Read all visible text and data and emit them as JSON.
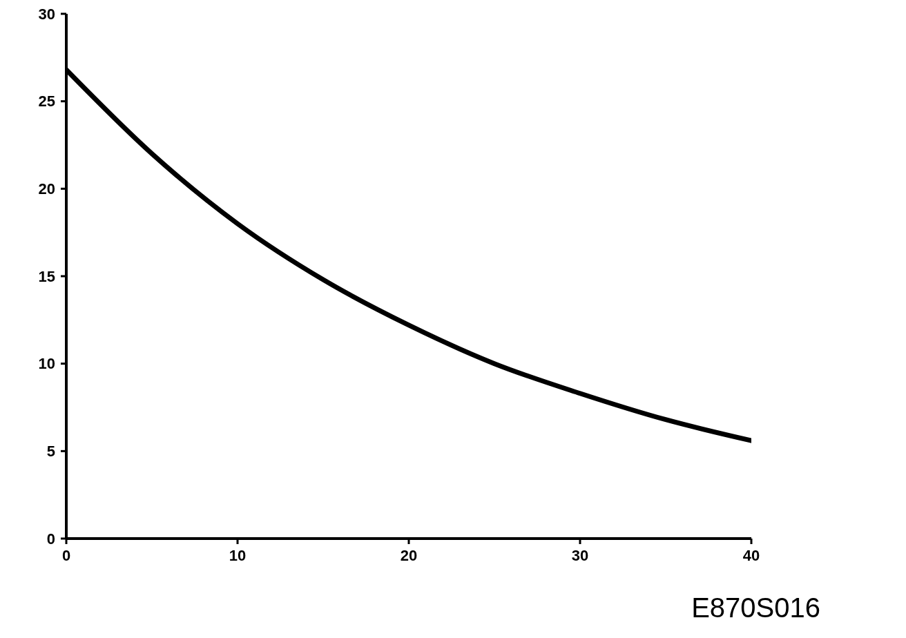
{
  "chart_data": {
    "type": "line",
    "x": [
      0,
      5,
      10,
      15,
      20,
      25,
      30,
      35,
      40
    ],
    "series": [
      {
        "color": "#000000",
        "values": [
          26.8,
          22.0,
          18.0,
          14.8,
          12.2,
          10.0,
          8.3,
          6.8,
          5.6
        ]
      }
    ],
    "xlim": [
      0,
      40
    ],
    "xticks": [
      0,
      10,
      20,
      30,
      40
    ],
    "ylim": [
      0,
      30
    ],
    "yticks": [
      0,
      5,
      10,
      15,
      20,
      25,
      30
    ],
    "grid": false,
    "marker": "none",
    "line_style": "solid",
    "annotations": [
      "E870S016"
    ]
  }
}
